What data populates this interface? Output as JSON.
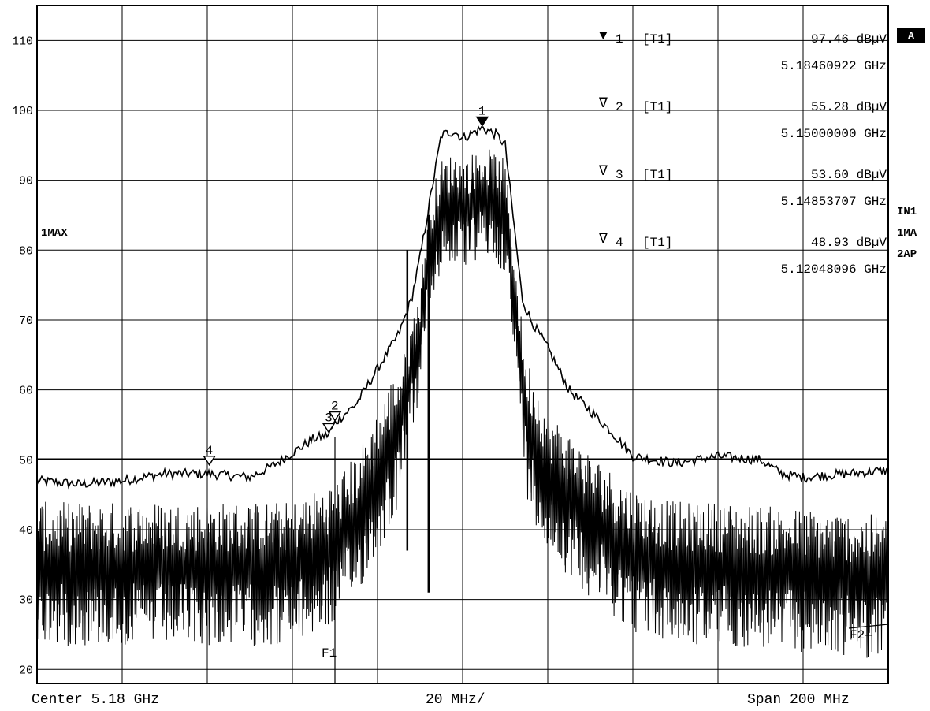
{
  "analyzer": {
    "ref_badge": "A",
    "trace_label": "1MAX",
    "side_labels": [
      "IN1",
      "1MA",
      "2AP"
    ],
    "bottom": {
      "center": "Center 5.18 GHz",
      "per_div": "20 MHz/",
      "span": "Span 200 MHz"
    },
    "markers_table": [
      {
        "symbol": "▼",
        "num": "1",
        "trace": "[T1]",
        "level": "97.46 dBµV",
        "freq": "5.18460922 GHz"
      },
      {
        "symbol": "∇",
        "num": "2",
        "trace": "[T1]",
        "level": "55.28 dBµV",
        "freq": "5.15000000 GHz"
      },
      {
        "symbol": "∇",
        "num": "3",
        "trace": "[T1]",
        "level": "53.60 dBµV",
        "freq": "5.14853707 GHz"
      },
      {
        "symbol": "∇",
        "num": "4",
        "trace": "[T1]",
        "level": "48.93 dBµV",
        "freq": "5.12048096 GHz"
      }
    ],
    "colors": {
      "trace": "#000000",
      "background": "#ffffff",
      "grid": "#000000"
    }
  },
  "chart_data": {
    "type": "line",
    "xlabel": "",
    "ylabel": "",
    "x_unit": "GHz",
    "y_unit": "dBµV",
    "xlim": [
      5.08,
      5.28
    ],
    "ylim": [
      18,
      115
    ],
    "ytick_labels": [
      "20",
      "30",
      "40",
      "50",
      "60",
      "70",
      "80",
      "90",
      "100",
      "110"
    ],
    "yticks": [
      20,
      30,
      40,
      50,
      60,
      70,
      80,
      90,
      100,
      110
    ],
    "grid": true,
    "reference_line": 50,
    "frequency_lines": [
      {
        "label": "F1",
        "x": 5.15
      },
      {
        "label": "F2",
        "x": 5.275
      }
    ],
    "markers": [
      {
        "label": "1",
        "x": 5.18460922,
        "y": 97.46,
        "filled": true
      },
      {
        "label": "2",
        "x": 5.15,
        "y": 55.28,
        "filled": false
      },
      {
        "label": "3",
        "x": 5.14853707,
        "y": 53.6,
        "filled": false
      },
      {
        "label": "4",
        "x": 5.12048096,
        "y": 48.93,
        "filled": false
      }
    ],
    "series": [
      {
        "name": "",
        "style": "max-hold envelope",
        "x": [
          5.08,
          5.09,
          5.1,
          5.11,
          5.12,
          5.13,
          5.135,
          5.14,
          5.145,
          5.1485,
          5.15,
          5.155,
          5.16,
          5.165,
          5.168,
          5.17,
          5.172,
          5.175,
          5.178,
          5.18,
          5.1846,
          5.188,
          5.19,
          5.192,
          5.194,
          5.196,
          5.2,
          5.205,
          5.21,
          5.215,
          5.22,
          5.225,
          5.23,
          5.24,
          5.25,
          5.255,
          5.26,
          5.27,
          5.28
        ],
        "y": [
          47,
          46.5,
          47,
          48,
          48,
          47.5,
          49,
          51,
          53,
          53.6,
          55.3,
          58,
          63,
          68,
          73,
          79,
          86,
          96.5,
          97,
          96,
          97.5,
          96.5,
          95,
          84,
          73,
          70,
          66,
          60,
          57,
          54,
          50.5,
          50,
          49.5,
          50.5,
          50,
          48,
          47.5,
          48,
          48.5
        ]
      },
      {
        "name": "",
        "style": "clear-write noisy",
        "x": [
          5.08,
          5.1,
          5.12,
          5.14,
          5.15,
          5.155,
          5.16,
          5.165,
          5.17,
          5.172,
          5.175,
          5.178,
          5.18,
          5.185,
          5.19,
          5.192,
          5.195,
          5.2,
          5.21,
          5.22,
          5.23,
          5.24,
          5.26,
          5.28
        ],
        "y": [
          35,
          35,
          35,
          35,
          38,
          42,
          48,
          55,
          68,
          80,
          86,
          87,
          86,
          88,
          86,
          74,
          56,
          48,
          42,
          37,
          35,
          35,
          34,
          33
        ]
      }
    ]
  }
}
